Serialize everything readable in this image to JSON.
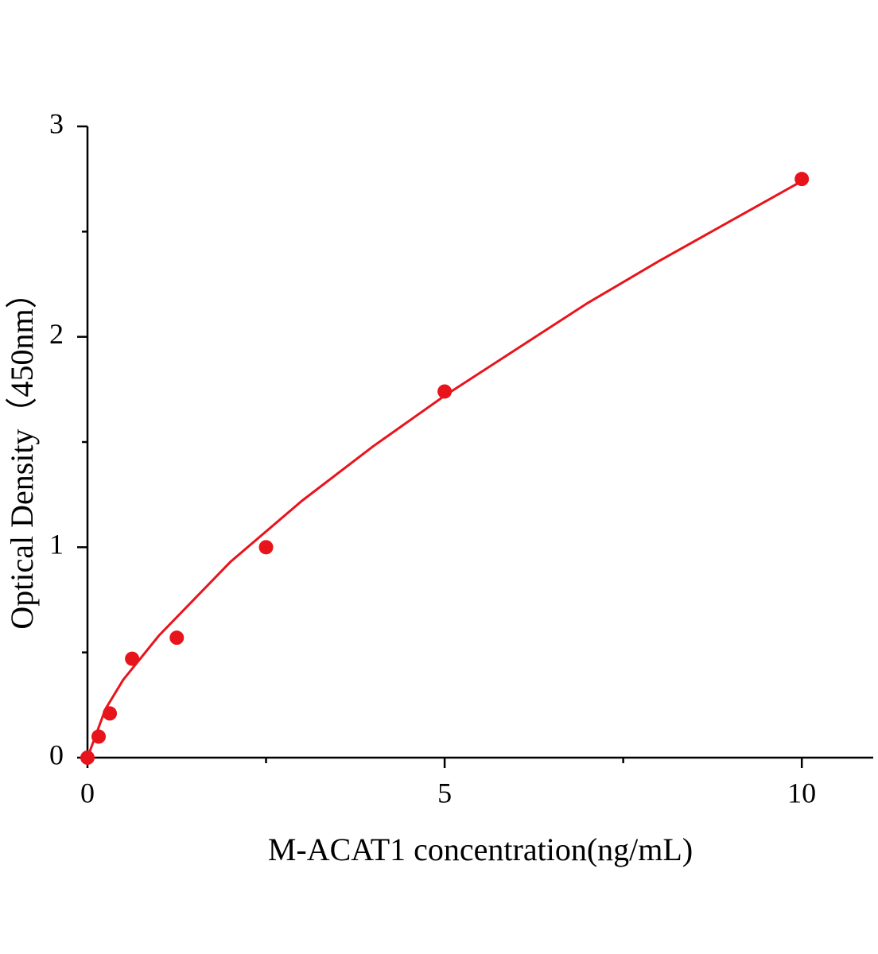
{
  "chart_data": {
    "type": "scatter",
    "x_label": "M-ACAT1 concentration(ng/mL)",
    "y_label": "Optical Density（450nm）",
    "x": [
      0,
      0.156,
      0.3125,
      0.625,
      1.25,
      2.5,
      5,
      10
    ],
    "series": [
      {
        "color": "#e8141c",
        "values": [
          0,
          0.1,
          0.21,
          0.47,
          0.57,
          1.0,
          1.74,
          2.75
        ]
      }
    ],
    "fit": {
      "color": "#e8141c",
      "x": [
        0,
        0.25,
        0.5,
        1,
        2,
        3,
        4,
        5,
        6,
        7,
        8,
        9,
        10
      ],
      "values": [
        0,
        0.23,
        0.37,
        0.58,
        0.93,
        1.22,
        1.48,
        1.72,
        1.94,
        2.16,
        2.36,
        2.55,
        2.74
      ]
    },
    "xlim": [
      0,
      11
    ],
    "ylim": [
      0,
      3
    ],
    "xticks": [
      0,
      5,
      10
    ],
    "yticks": [
      0,
      1,
      2,
      3
    ],
    "xminorticks": [
      2.5,
      7.5
    ],
    "yminorticks": [
      0.5,
      1.5,
      2.5
    ]
  }
}
